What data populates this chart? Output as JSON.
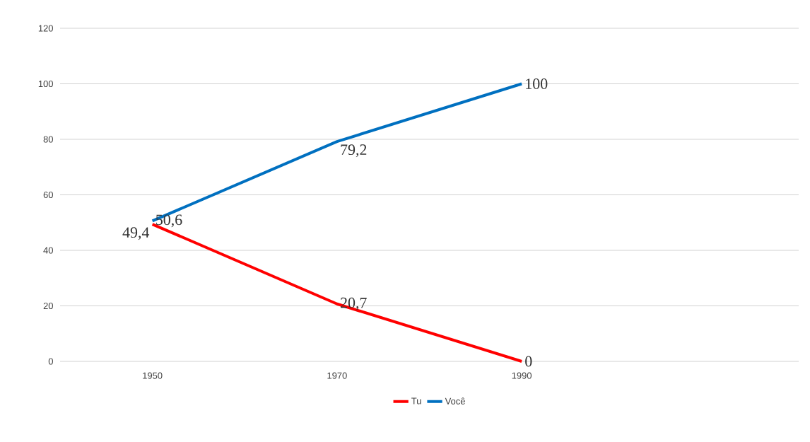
{
  "chart_data": {
    "type": "line",
    "categories": [
      "1950",
      "1970",
      "1990",
      null
    ],
    "series": [
      {
        "name": "Tu",
        "color": "#ff0000",
        "values": [
          49.4,
          20.7,
          0,
          null
        ],
        "value_labels": [
          "49,4",
          "20,7",
          "0",
          null
        ]
      },
      {
        "name": "Você",
        "color": "#0070c0",
        "values": [
          50.6,
          79.2,
          100,
          null
        ],
        "value_labels": [
          "50,6",
          "79,2",
          "100",
          null
        ]
      }
    ],
    "ylim": [
      0,
      120
    ],
    "yticks": [
      0,
      20,
      40,
      60,
      80,
      100,
      120
    ],
    "grid": "y",
    "legend": "bottom",
    "marker": "none",
    "line_style": "solid"
  }
}
